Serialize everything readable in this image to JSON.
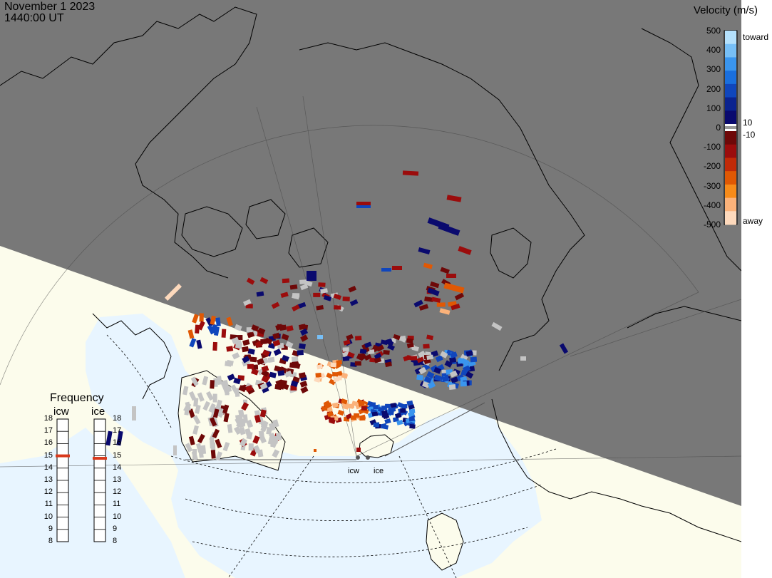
{
  "header": {
    "date": "November 1 2023",
    "time": "1440:00 UT"
  },
  "legend": {
    "title": "Velocity (m/s)",
    "ticks": [
      "500",
      "400",
      "300",
      "200",
      "100",
      "0",
      "-100",
      "-200",
      "-300",
      "-400",
      "-500"
    ],
    "tick_values": [
      500,
      400,
      300,
      200,
      100,
      0,
      -100,
      -200,
      -300,
      -400,
      -500
    ],
    "toward_label": "toward",
    "away_label": "away",
    "pos_threshold": "10",
    "neg_threshold": "-10",
    "colors_positive": [
      "#0a0a6e",
      "#0b238f",
      "#1046bc",
      "#1a6fde",
      "#3a95ee",
      "#77bff6",
      "#b4e0fb"
    ],
    "colors_negative": [
      "#6e0808",
      "#9b0c0c",
      "#c12a08",
      "#e05804",
      "#f78b1a",
      "#fbb27a",
      "#fdd9bc"
    ]
  },
  "frequency": {
    "title": "Frequency",
    "radars": [
      "icw",
      "ice"
    ],
    "scale": [
      "18",
      "17",
      "16",
      "15",
      "14",
      "13",
      "12",
      "11",
      "10",
      "9",
      "8"
    ],
    "scale_values": [
      18,
      17,
      16,
      15,
      14,
      13,
      12,
      11,
      10,
      9,
      8
    ],
    "icw_value": 15,
    "ice_value": 14.8
  },
  "radar_labels": {
    "west": "icw",
    "east": "ice"
  },
  "colors": {
    "night": "#787878",
    "day_land": "#fcfcec",
    "ocean": "#e8f5ff",
    "ground_scatter": "#c4c4c4",
    "freq_marker": "#d9391c"
  },
  "map_features": {
    "continents": "coastlines",
    "region": "Arctic / Canada / Greenland / Northern Europe",
    "projection": "polar stereographic"
  }
}
